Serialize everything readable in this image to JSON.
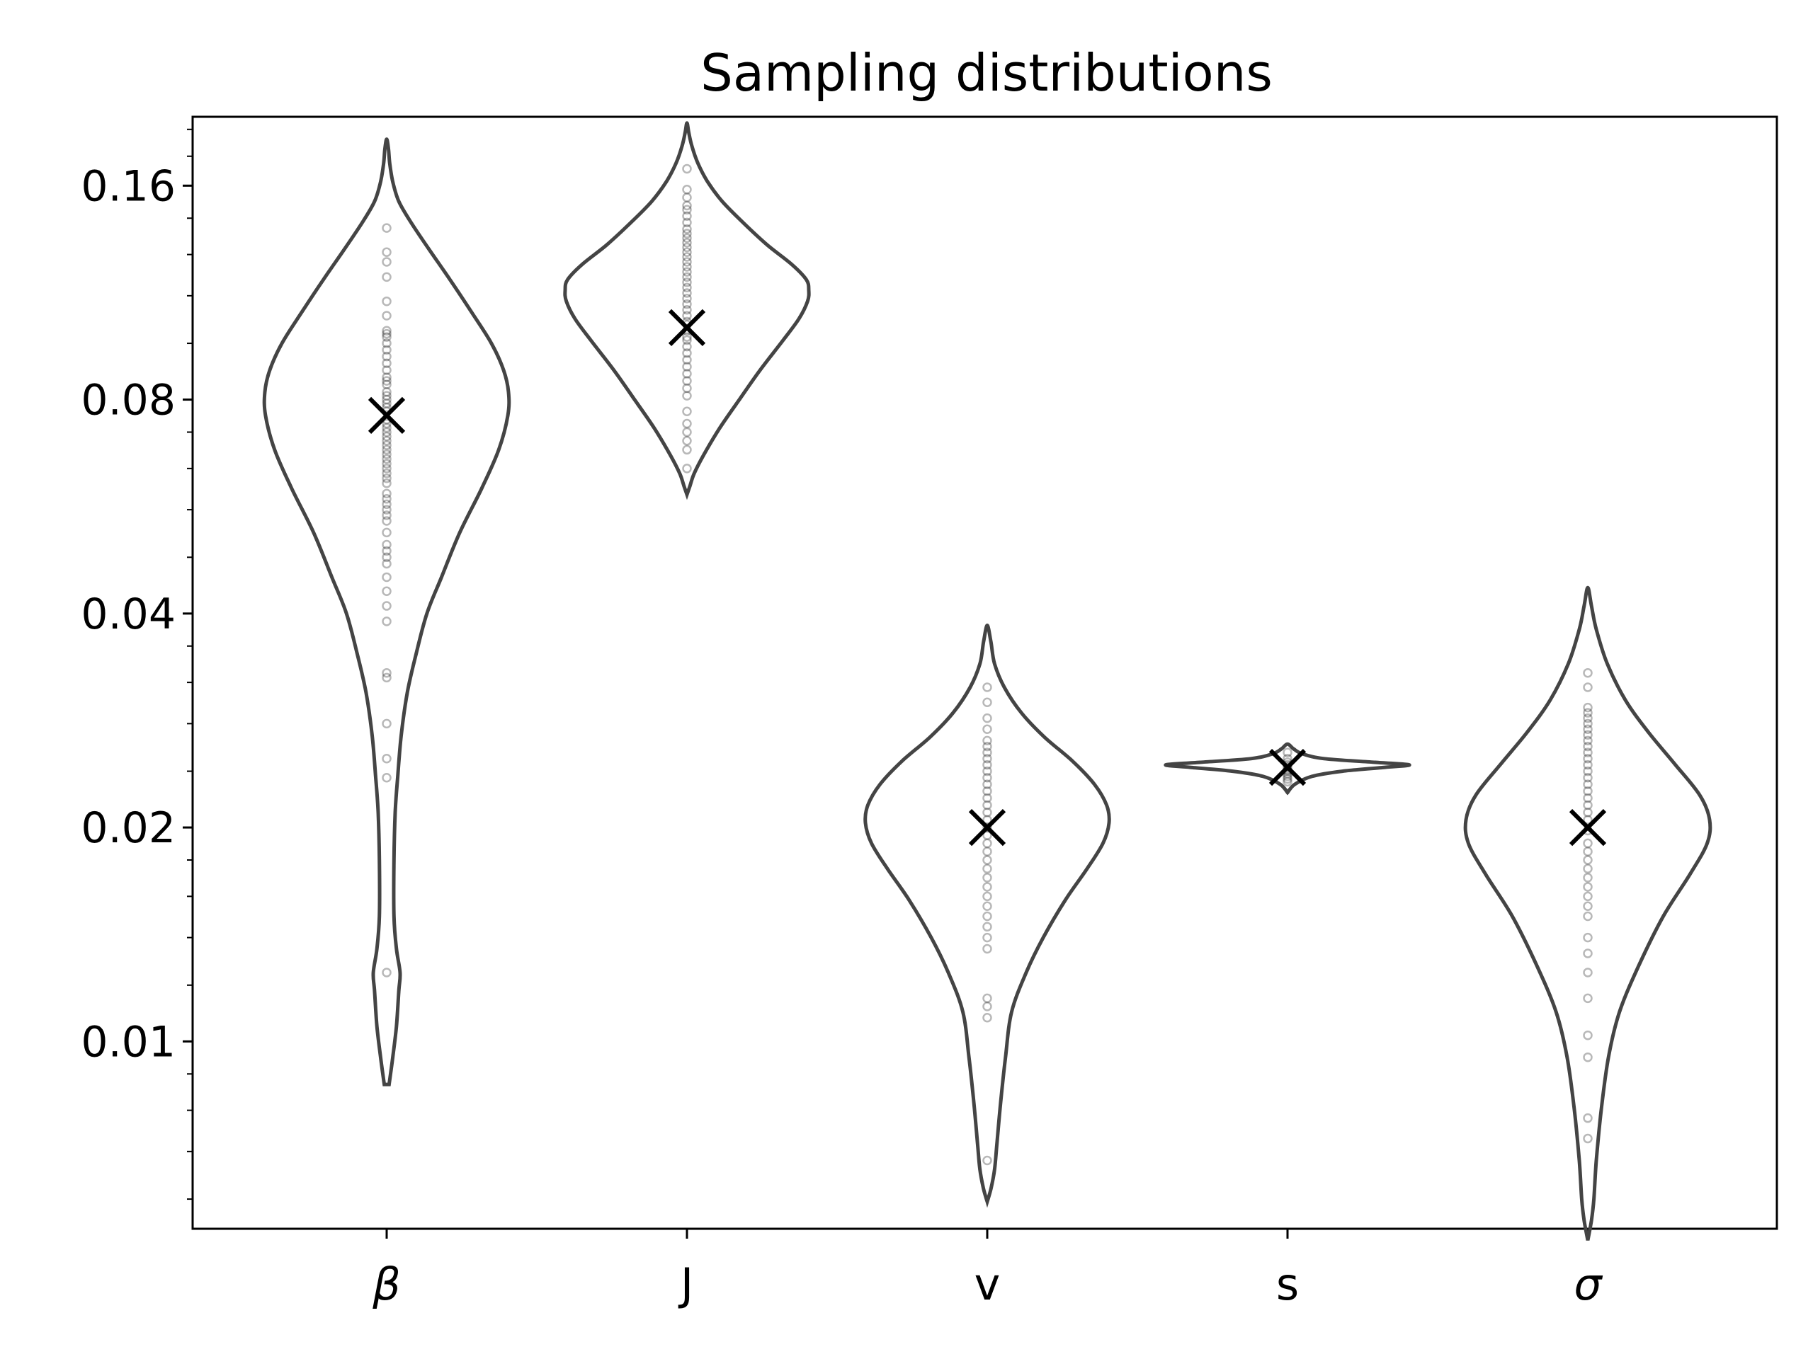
{
  "chart_data": {
    "type": "violin",
    "title": "Sampling distributions",
    "xlabel": "",
    "ylabel": "",
    "yscale": "log",
    "ylim": [
      0.00545,
      0.2
    ],
    "yticks": [
      {
        "value": 0.01,
        "label": "0.01"
      },
      {
        "value": 0.02,
        "label": "0.02"
      },
      {
        "value": 0.04,
        "label": "0.04"
      },
      {
        "value": 0.08,
        "label": "0.08"
      },
      {
        "value": 0.16,
        "label": "0.16"
      }
    ],
    "categories": [
      "β",
      "J",
      "v",
      "s",
      "σ"
    ],
    "category_italic": [
      true,
      false,
      false,
      false,
      true
    ],
    "colors": {
      "violin_edge": "#444444",
      "points": "#000000",
      "marker": "#000000"
    },
    "series": [
      {
        "category": "β",
        "estimate": 0.076,
        "points": [
          0.1395,
          0.129,
          0.125,
          0.119,
          0.11,
          0.105,
          0.1,
          0.099,
          0.098,
          0.096,
          0.094,
          0.092,
          0.09,
          0.088,
          0.086,
          0.085,
          0.084,
          0.082,
          0.081,
          0.08,
          0.079,
          0.078,
          0.077,
          0.075,
          0.074,
          0.073,
          0.072,
          0.071,
          0.07,
          0.069,
          0.068,
          0.067,
          0.066,
          0.065,
          0.064,
          0.063,
          0.062,
          0.061,
          0.059,
          0.058,
          0.057,
          0.056,
          0.055,
          0.054,
          0.052,
          0.05,
          0.049,
          0.048,
          0.047,
          0.045,
          0.043,
          0.041,
          0.039,
          0.033,
          0.0325,
          0.028,
          0.025,
          0.0235,
          0.0125
        ],
        "density": [
          [
            0.0087,
            0.02
          ],
          [
            0.0095,
            0.05
          ],
          [
            0.0105,
            0.08
          ],
          [
            0.0118,
            0.1
          ],
          [
            0.0125,
            0.11
          ],
          [
            0.0135,
            0.08
          ],
          [
            0.015,
            0.06
          ],
          [
            0.018,
            0.06
          ],
          [
            0.021,
            0.07
          ],
          [
            0.0235,
            0.09
          ],
          [
            0.027,
            0.12
          ],
          [
            0.031,
            0.17
          ],
          [
            0.035,
            0.24
          ],
          [
            0.04,
            0.33
          ],
          [
            0.045,
            0.45
          ],
          [
            0.052,
            0.6
          ],
          [
            0.06,
            0.78
          ],
          [
            0.068,
            0.92
          ],
          [
            0.076,
            0.995
          ],
          [
            0.082,
            1.0
          ],
          [
            0.088,
            0.96
          ],
          [
            0.096,
            0.86
          ],
          [
            0.106,
            0.7
          ],
          [
            0.118,
            0.52
          ],
          [
            0.13,
            0.35
          ],
          [
            0.142,
            0.2
          ],
          [
            0.152,
            0.1
          ],
          [
            0.162,
            0.05
          ],
          [
            0.172,
            0.025
          ],
          [
            0.18,
            0.015
          ],
          [
            0.186,
            0.0
          ]
        ]
      },
      {
        "category": "J",
        "estimate": 0.101,
        "points": [
          0.169,
          0.158,
          0.154,
          0.15,
          0.148,
          0.145,
          0.142,
          0.139,
          0.137,
          0.135,
          0.133,
          0.131,
          0.129,
          0.127,
          0.125,
          0.123,
          0.121,
          0.119,
          0.117,
          0.115,
          0.113,
          0.111,
          0.109,
          0.107,
          0.105,
          0.103,
          0.102,
          0.1,
          0.098,
          0.097,
          0.095,
          0.093,
          0.091,
          0.089,
          0.087,
          0.085,
          0.083,
          0.081,
          0.077,
          0.074,
          0.072,
          0.07,
          0.068,
          0.064
        ],
        "density": [
          [
            0.0588,
            0.0
          ],
          [
            0.0605,
            0.025
          ],
          [
            0.063,
            0.06
          ],
          [
            0.067,
            0.14
          ],
          [
            0.073,
            0.27
          ],
          [
            0.08,
            0.43
          ],
          [
            0.088,
            0.6
          ],
          [
            0.097,
            0.79
          ],
          [
            0.104,
            0.92
          ],
          [
            0.11,
            0.99
          ],
          [
            0.114,
            1.0
          ],
          [
            0.118,
            0.98
          ],
          [
            0.124,
            0.86
          ],
          [
            0.132,
            0.66
          ],
          [
            0.142,
            0.46
          ],
          [
            0.152,
            0.29
          ],
          [
            0.162,
            0.17
          ],
          [
            0.172,
            0.09
          ],
          [
            0.182,
            0.04
          ],
          [
            0.19,
            0.015
          ],
          [
            0.196,
            0.0
          ]
        ]
      },
      {
        "category": "v",
        "estimate": 0.02,
        "points": [
          0.0315,
          0.03,
          0.0285,
          0.0275,
          0.0265,
          0.026,
          0.0255,
          0.025,
          0.0245,
          0.024,
          0.0235,
          0.023,
          0.0225,
          0.022,
          0.0215,
          0.021,
          0.0205,
          0.02,
          0.0195,
          0.019,
          0.0185,
          0.018,
          0.0175,
          0.017,
          0.0165,
          0.016,
          0.0155,
          0.015,
          0.0145,
          0.014,
          0.0135,
          0.0115,
          0.0112,
          0.0108,
          0.0068
        ],
        "density": [
          [
            0.00595,
            0.0
          ],
          [
            0.0062,
            0.03
          ],
          [
            0.0066,
            0.06
          ],
          [
            0.0072,
            0.08
          ],
          [
            0.0082,
            0.11
          ],
          [
            0.0095,
            0.15
          ],
          [
            0.011,
            0.2
          ],
          [
            0.0125,
            0.32
          ],
          [
            0.014,
            0.46
          ],
          [
            0.0158,
            0.64
          ],
          [
            0.0175,
            0.82
          ],
          [
            0.019,
            0.95
          ],
          [
            0.0203,
            1.0
          ],
          [
            0.0215,
            0.98
          ],
          [
            0.023,
            0.88
          ],
          [
            0.0248,
            0.7
          ],
          [
            0.0268,
            0.47
          ],
          [
            0.029,
            0.28
          ],
          [
            0.0315,
            0.14
          ],
          [
            0.034,
            0.06
          ],
          [
            0.0365,
            0.03
          ],
          [
            0.0385,
            0.0
          ]
        ]
      },
      {
        "category": "s",
        "estimate": 0.0243,
        "points": [
          0.0255,
          0.025,
          0.0247,
          0.0245,
          0.0243,
          0.0241,
          0.024,
          0.0238,
          0.0236,
          0.0234,
          0.0232
        ],
        "density": [
          [
            0.0224,
            0.0
          ],
          [
            0.023,
            0.06
          ],
          [
            0.0236,
            0.2
          ],
          [
            0.024,
            0.45
          ],
          [
            0.0243,
            0.8
          ],
          [
            0.0245,
            1.0
          ],
          [
            0.0247,
            0.72
          ],
          [
            0.025,
            0.3
          ],
          [
            0.0254,
            0.12
          ],
          [
            0.0258,
            0.05
          ],
          [
            0.0262,
            0.0
          ]
        ]
      },
      {
        "category": "σ",
        "estimate": 0.02,
        "points": [
          0.033,
          0.0315,
          0.0295,
          0.029,
          0.0285,
          0.028,
          0.0275,
          0.027,
          0.0265,
          0.026,
          0.0255,
          0.025,
          0.0245,
          0.024,
          0.0235,
          0.023,
          0.0225,
          0.022,
          0.0215,
          0.021,
          0.0205,
          0.0198,
          0.019,
          0.0185,
          0.018,
          0.0175,
          0.017,
          0.0165,
          0.016,
          0.0155,
          0.015,
          0.014,
          0.0133,
          0.0125,
          0.0115,
          0.0102,
          0.0095,
          0.0078,
          0.0073
        ],
        "density": [
          [
            0.00525,
            0.0
          ],
          [
            0.0056,
            0.03
          ],
          [
            0.006,
            0.05
          ],
          [
            0.0068,
            0.07
          ],
          [
            0.008,
            0.11
          ],
          [
            0.0095,
            0.17
          ],
          [
            0.011,
            0.26
          ],
          [
            0.0128,
            0.42
          ],
          [
            0.015,
            0.62
          ],
          [
            0.0172,
            0.84
          ],
          [
            0.019,
            0.98
          ],
          [
            0.0205,
            1.0
          ],
          [
            0.0222,
            0.92
          ],
          [
            0.0245,
            0.72
          ],
          [
            0.0272,
            0.5
          ],
          [
            0.0302,
            0.31
          ],
          [
            0.034,
            0.16
          ],
          [
            0.038,
            0.07
          ],
          [
            0.041,
            0.03
          ],
          [
            0.0435,
            0.0
          ]
        ]
      }
    ]
  }
}
